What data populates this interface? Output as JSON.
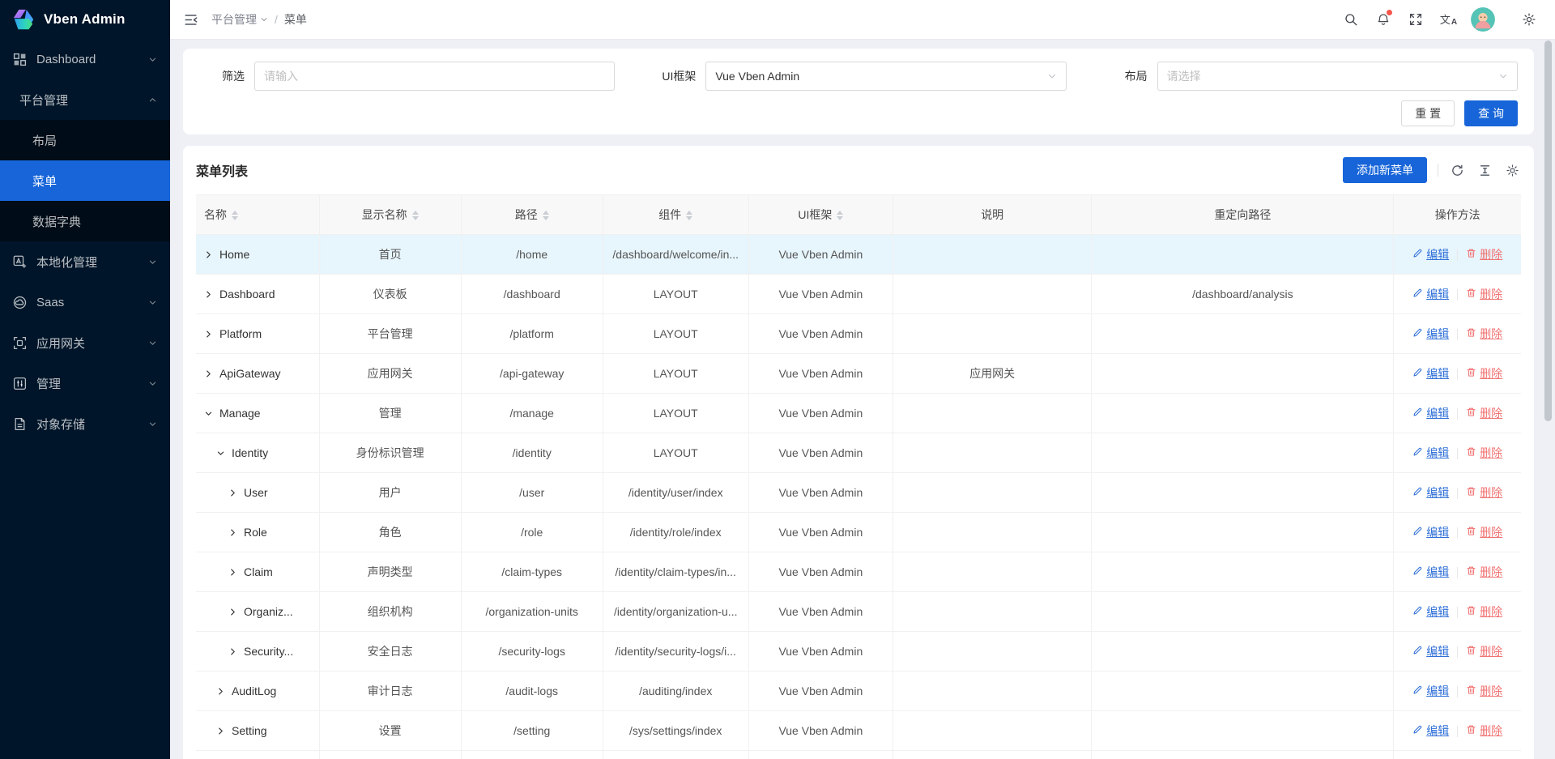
{
  "app": {
    "title": "Vben Admin"
  },
  "colors": {
    "primary": "#1765d9",
    "sidebar_bg": "#001529",
    "sidebar_submenu_bg": "#000c17",
    "selected_menu_bg": "#1765d9",
    "content_bg": "#eef0f5",
    "highlight_row": "#e7f5fc",
    "delete_red": "#f17373",
    "badge_red": "#f5554a",
    "avatar_bg": "#56c3b7"
  },
  "sidebar": {
    "items": [
      {
        "key": "dashboard",
        "label": "Dashboard",
        "icon": "dashboard-icon",
        "chevron": "down"
      },
      {
        "key": "platform-management",
        "label": "平台管理",
        "chevron": "up",
        "children": [
          {
            "key": "layout",
            "label": "布局",
            "selected": false
          },
          {
            "key": "menu",
            "label": "菜单",
            "selected": true
          },
          {
            "key": "data-dictionary",
            "label": "数据字典",
            "selected": false
          }
        ]
      },
      {
        "key": "localization",
        "label": "本地化管理",
        "icon": "localization-icon",
        "chevron": "down"
      },
      {
        "key": "saas",
        "label": "Saas",
        "icon": "saas-icon",
        "chevron": "down"
      },
      {
        "key": "app-gateway",
        "label": "应用网关",
        "icon": "gateway-icon",
        "chevron": "down"
      },
      {
        "key": "manage",
        "label": "管理",
        "icon": "manage-icon",
        "chevron": "down"
      },
      {
        "key": "object-storage",
        "label": "对象存储",
        "icon": "storage-icon",
        "chevron": "down"
      }
    ]
  },
  "header": {
    "breadcrumb": [
      {
        "label": "平台管理",
        "dropdown": true
      },
      {
        "label": "菜单",
        "dropdown": false
      }
    ],
    "separator": "/",
    "icons": [
      "search-icon",
      "notification-bell-icon",
      "fullscreen-icon",
      "translate-icon",
      "user-avatar",
      "settings-gear-icon"
    ],
    "notification_badge": true
  },
  "filter": {
    "fields": [
      {
        "label": "筛选",
        "type": "input",
        "placeholder": "请输入",
        "value": ""
      },
      {
        "label": "UI框架",
        "type": "select",
        "placeholder": "",
        "value": "Vue Vben Admin"
      },
      {
        "label": "布局",
        "type": "select",
        "placeholder": "请选择",
        "value": ""
      }
    ],
    "reset_label": "重 置",
    "search_label": "查 询"
  },
  "table": {
    "title": "菜单列表",
    "add_button": "添加新菜单",
    "toolbar_icons": [
      "refresh-icon",
      "row-height-icon",
      "settings-gear-icon"
    ],
    "columns": [
      {
        "key": "name",
        "label": "名称",
        "sortable": true
      },
      {
        "key": "display-name",
        "label": "显示名称",
        "sortable": true
      },
      {
        "key": "path",
        "label": "路径",
        "sortable": true
      },
      {
        "key": "component",
        "label": "组件",
        "sortable": true
      },
      {
        "key": "ui-framework",
        "label": "UI框架",
        "sortable": true
      },
      {
        "key": "description",
        "label": "说明",
        "sortable": false
      },
      {
        "key": "redirect",
        "label": "重定向路径",
        "sortable": false
      },
      {
        "key": "actions",
        "label": "操作方法",
        "sortable": false
      }
    ],
    "edit_label": "编辑",
    "delete_label": "删除",
    "rows": [
      {
        "key": "home",
        "name": "Home",
        "level": 0,
        "expanded": false,
        "highlighted": true,
        "display_name": "首页",
        "path": "/home",
        "component": "/dashboard/welcome/in...",
        "ui_framework": "Vue Vben Admin",
        "description": "",
        "redirect": ""
      },
      {
        "key": "dashboard",
        "name": "Dashboard",
        "level": 0,
        "expanded": false,
        "highlighted": false,
        "display_name": "仪表板",
        "path": "/dashboard",
        "component": "LAYOUT",
        "ui_framework": "Vue Vben Admin",
        "description": "",
        "redirect": "/dashboard/analysis"
      },
      {
        "key": "platform",
        "name": "Platform",
        "level": 0,
        "expanded": false,
        "highlighted": false,
        "display_name": "平台管理",
        "path": "/platform",
        "component": "LAYOUT",
        "ui_framework": "Vue Vben Admin",
        "description": "",
        "redirect": ""
      },
      {
        "key": "api-gateway",
        "name": "ApiGateway",
        "level": 0,
        "expanded": false,
        "highlighted": false,
        "display_name": "应用网关",
        "path": "/api-gateway",
        "component": "LAYOUT",
        "ui_framework": "Vue Vben Admin",
        "description": "应用网关",
        "redirect": ""
      },
      {
        "key": "manage",
        "name": "Manage",
        "level": 0,
        "expanded": true,
        "highlighted": false,
        "display_name": "管理",
        "path": "/manage",
        "component": "LAYOUT",
        "ui_framework": "Vue Vben Admin",
        "description": "",
        "redirect": ""
      },
      {
        "key": "identity",
        "name": "Identity",
        "level": 1,
        "expanded": true,
        "highlighted": false,
        "display_name": "身份标识管理",
        "path": "/identity",
        "component": "LAYOUT",
        "ui_framework": "Vue Vben Admin",
        "description": "",
        "redirect": ""
      },
      {
        "key": "user",
        "name": "User",
        "level": 2,
        "expanded": false,
        "highlighted": false,
        "display_name": "用户",
        "path": "/user",
        "component": "/identity/user/index",
        "ui_framework": "Vue Vben Admin",
        "description": "",
        "redirect": ""
      },
      {
        "key": "role",
        "name": "Role",
        "level": 2,
        "expanded": false,
        "highlighted": false,
        "display_name": "角色",
        "path": "/role",
        "component": "/identity/role/index",
        "ui_framework": "Vue Vben Admin",
        "description": "",
        "redirect": ""
      },
      {
        "key": "claim",
        "name": "Claim",
        "level": 2,
        "expanded": false,
        "highlighted": false,
        "display_name": "声明类型",
        "path": "/claim-types",
        "component": "/identity/claim-types/in...",
        "ui_framework": "Vue Vben Admin",
        "description": "",
        "redirect": ""
      },
      {
        "key": "organization-units",
        "name": "Organiz...",
        "level": 2,
        "expanded": false,
        "highlighted": false,
        "display_name": "组织机构",
        "path": "/organization-units",
        "component": "/identity/organization-u...",
        "ui_framework": "Vue Vben Admin",
        "description": "",
        "redirect": ""
      },
      {
        "key": "security-logs",
        "name": "Security...",
        "level": 2,
        "expanded": false,
        "highlighted": false,
        "display_name": "安全日志",
        "path": "/security-logs",
        "component": "/identity/security-logs/i...",
        "ui_framework": "Vue Vben Admin",
        "description": "",
        "redirect": ""
      },
      {
        "key": "audit-log",
        "name": "AuditLog",
        "level": 1,
        "expanded": false,
        "highlighted": false,
        "display_name": "审计日志",
        "path": "/audit-logs",
        "component": "/auditing/index",
        "ui_framework": "Vue Vben Admin",
        "description": "",
        "redirect": ""
      },
      {
        "key": "setting",
        "name": "Setting",
        "level": 1,
        "expanded": false,
        "highlighted": false,
        "display_name": "设置",
        "path": "/setting",
        "component": "/sys/settings/index",
        "ui_framework": "Vue Vben Admin",
        "description": "",
        "redirect": ""
      }
    ]
  }
}
